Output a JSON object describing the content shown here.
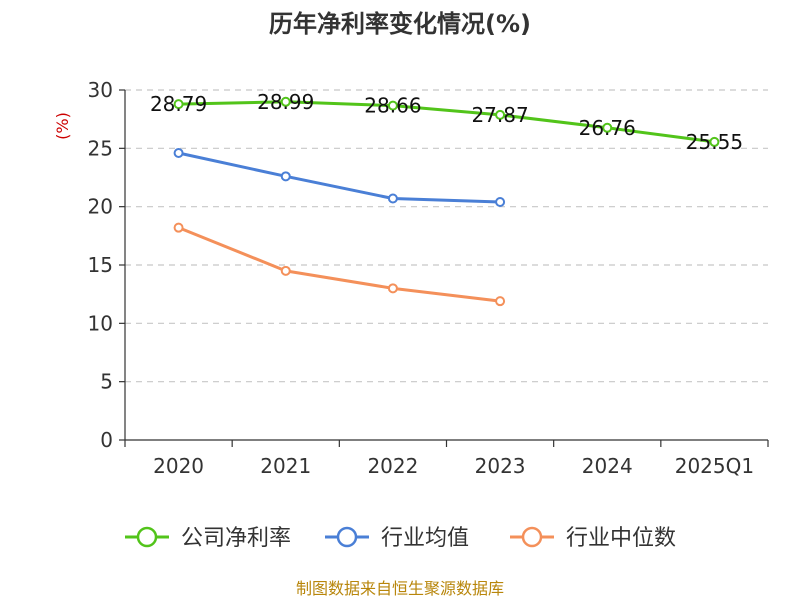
{
  "chart_data": {
    "type": "line",
    "title": "历年净利率变化情况(%)",
    "ylabel": "(%)",
    "xlabel": "",
    "categories": [
      "2020",
      "2021",
      "2022",
      "2023",
      "2024",
      "2025Q1"
    ],
    "ylim": [
      0,
      30
    ],
    "yticks": [
      0,
      5,
      10,
      15,
      20,
      25,
      30
    ],
    "grid": true,
    "legend_position": "bottom",
    "series": [
      {
        "name": "公司净利率",
        "color": "#52c41a",
        "values": [
          28.79,
          28.99,
          28.66,
          27.87,
          26.76,
          25.55
        ],
        "labels": [
          "28.79",
          "28.99",
          "28.66",
          "27.87",
          "26.76",
          "25.55"
        ]
      },
      {
        "name": "行业均值",
        "color": "#4a7fd6",
        "values": [
          24.6,
          22.6,
          20.7,
          20.4,
          null,
          null
        ]
      },
      {
        "name": "行业中位数",
        "color": "#f4905a",
        "values": [
          18.2,
          14.5,
          13.0,
          11.9,
          null,
          null
        ]
      }
    ]
  },
  "footer": {
    "source": "制图数据来自恒生聚源数据库"
  }
}
